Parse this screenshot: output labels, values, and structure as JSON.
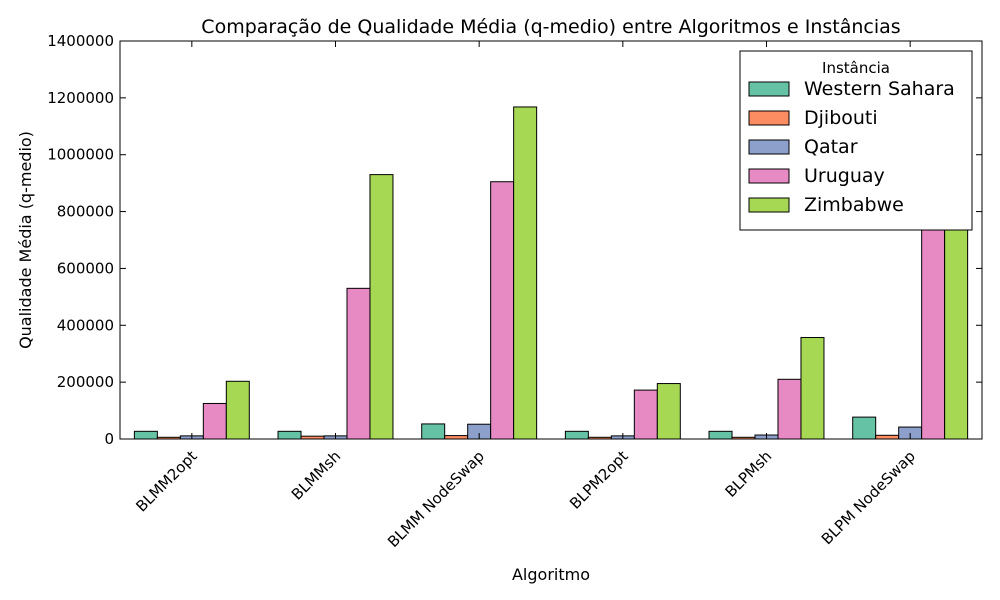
{
  "chart_data": {
    "type": "bar",
    "title": "Comparação de Qualidade Média (q-medio) entre Algoritmos e Instâncias",
    "xlabel": "Algoritmo",
    "ylabel": "Qualidade Média (q-medio)",
    "ylim": [
      0,
      1400000
    ],
    "yticks": [
      "0",
      "200000",
      "400000",
      "600000",
      "800000",
      "1000000",
      "1200000",
      "1400000"
    ],
    "categories": [
      "BLMM2opt",
      "BLMMsh",
      "BLMM NodeSwap",
      "BLPM2opt",
      "BLPMsh",
      "BLPM NodeSwap"
    ],
    "legend_title": "Instância",
    "legend_position": "top-right",
    "series": [
      {
        "name": "Western Sahara",
        "color": "#66c2a5",
        "values": [
          27000,
          27000,
          53000,
          27000,
          27000,
          77000
        ]
      },
      {
        "name": "Djibouti",
        "color": "#fc8d62",
        "values": [
          6000,
          10000,
          12000,
          6000,
          6000,
          13000
        ]
      },
      {
        "name": "Qatar",
        "color": "#8da0cb",
        "values": [
          11000,
          11000,
          52000,
          11000,
          14000,
          42000
        ]
      },
      {
        "name": "Uruguay",
        "color": "#e78ac3",
        "values": [
          125000,
          530000,
          905000,
          172000,
          210000,
          760000
        ]
      },
      {
        "name": "Zimbabwe",
        "color": "#a6d854",
        "values": [
          203000,
          930000,
          1168000,
          195000,
          357000,
          780000
        ]
      }
    ]
  }
}
